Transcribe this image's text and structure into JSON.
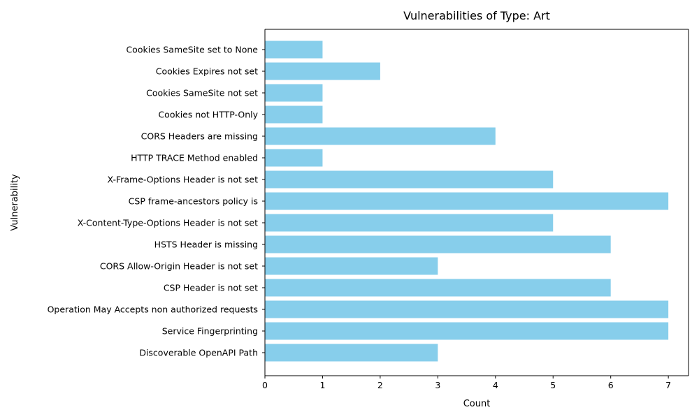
{
  "chart_data": {
    "type": "bar",
    "orientation": "horizontal",
    "title": "Vulnerabilities of Type: Art",
    "xlabel": "Count",
    "ylabel": "Vulnerability",
    "xlim": [
      0,
      7.35
    ],
    "xticks": [
      0,
      1,
      2,
      3,
      4,
      5,
      6,
      7
    ],
    "grid": false,
    "bar_color": "#87CEEB",
    "categories": [
      "Cookies SameSite set to None",
      "Cookies Expires not set",
      "Cookies SameSite not set",
      "Cookies not HTTP-Only",
      "CORS Headers are missing",
      "HTTP TRACE Method enabled",
      "X-Frame-Options Header is not set",
      "CSP frame-ancestors policy is",
      "X-Content-Type-Options Header is not set",
      "HSTS Header is missing",
      "CORS Allow-Origin Header is not set",
      "CSP Header is not set",
      "Operation May Accepts non authorized requests",
      "Service Fingerprinting",
      "Discoverable OpenAPI Path"
    ],
    "values": [
      1,
      2,
      1,
      1,
      4,
      1,
      5,
      7,
      5,
      6,
      3,
      6,
      7,
      7,
      3
    ]
  }
}
